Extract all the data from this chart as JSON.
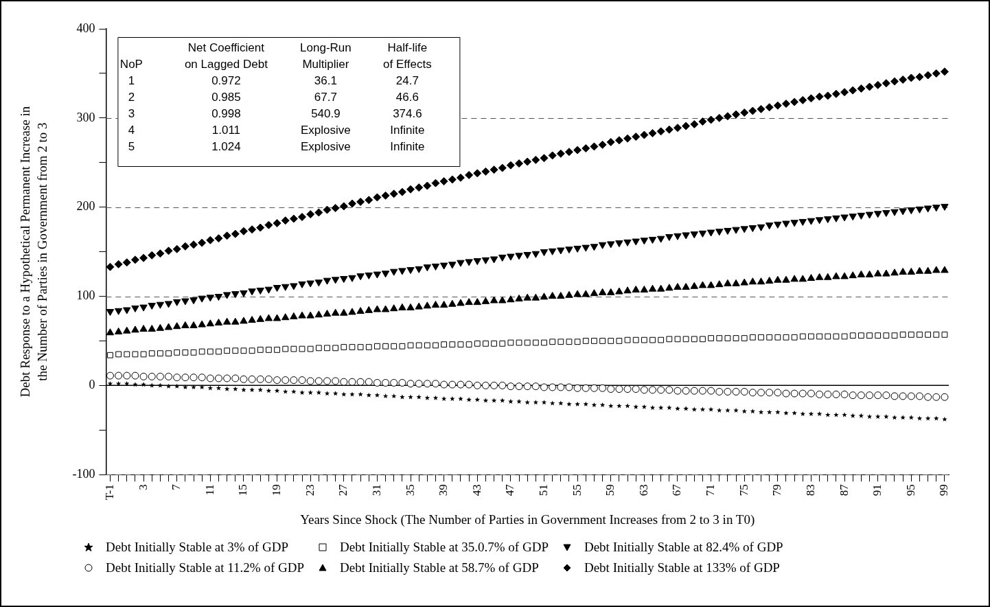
{
  "chart_data": {
    "type": "scatter",
    "xlabel": "Years Since Shock (The Number of Parties in Government Increases from 2 to 3 in T0)",
    "ylabel": "Debt Response to a Hypothetical Permanent Increase in\nthe Number of Parties in Government from 2 to 3",
    "categories": [
      "T-1",
      null,
      null,
      null,
      "3",
      null,
      null,
      null,
      "7",
      null,
      null,
      null,
      "11",
      null,
      null,
      null,
      "15",
      null,
      null,
      null,
      "19",
      null,
      null,
      null,
      "23",
      null,
      null,
      null,
      "27",
      null,
      null,
      null,
      "31",
      null,
      null,
      null,
      "35",
      null,
      null,
      null,
      "39",
      null,
      null,
      null,
      "43",
      null,
      null,
      null,
      "47",
      null,
      null,
      null,
      "51",
      null,
      null,
      null,
      "55",
      null,
      null,
      null,
      "59",
      null,
      null,
      null,
      "63",
      null,
      null,
      null,
      "67",
      null,
      null,
      null,
      "71",
      null,
      null,
      null,
      "75",
      null,
      null,
      null,
      "79",
      null,
      null,
      null,
      "83",
      null,
      null,
      null,
      "87",
      null,
      null,
      null,
      "91",
      null,
      null,
      null,
      "95",
      null,
      null,
      null,
      "99"
    ],
    "ylim": [
      -100,
      400
    ],
    "yticks": [
      -100,
      {
        "value": -50,
        "label": null
      },
      0,
      {
        "value": 50,
        "label": null
      },
      100,
      {
        "value": 150,
        "label": null
      },
      200,
      {
        "value": 250,
        "label": null
      },
      300,
      {
        "value": 350,
        "label": null
      },
      400
    ],
    "grid": "y",
    "legend": "bottom",
    "ref_lines": [
      {
        "axis": "y",
        "value": 0,
        "label": null,
        "color": "#000000",
        "line_style": "solid"
      }
    ],
    "annotations": [
      "Net Coefficient",
      "Long-Run",
      "Half-life",
      "NoP",
      "on Lagged Debt",
      "Multiplier",
      "of Effects",
      "1",
      "0.972",
      "36.1",
      "24.7",
      "2",
      "0.985",
      "67.7",
      "46.6",
      "3",
      "0.998",
      "540.9",
      "374.6",
      "4",
      "1.011",
      "Explosive",
      "Infinite",
      "5",
      "1.024",
      "Explosive",
      "Infinite"
    ],
    "series": [
      {
        "name": "Debt Initially Stable at 3% of GDP",
        "color": "#000000",
        "marker": "star",
        "values": [
          2,
          2,
          2,
          1,
          1,
          0,
          0,
          -1,
          -1,
          -2,
          -2,
          -2,
          -3,
          -3,
          -4,
          -4,
          -5,
          -5,
          -5,
          -6,
          -6,
          -7,
          -7,
          -8,
          -8,
          -8,
          -9,
          -9,
          -10,
          -10,
          -10,
          -11,
          -11,
          -12,
          -12,
          -13,
          -13,
          -13,
          -14,
          -14,
          -15,
          -15,
          -15,
          -16,
          -16,
          -17,
          -17,
          -17,
          -18,
          -18,
          -19,
          -19,
          -19,
          -20,
          -20,
          -21,
          -21,
          -21,
          -22,
          -22,
          -23,
          -23,
          -23,
          -24,
          -24,
          -25,
          -25,
          -25,
          -26,
          -26,
          -27,
          -27,
          -27,
          -28,
          -28,
          -28,
          -29,
          -29,
          -30,
          -30,
          -30,
          -31,
          -31,
          -32,
          -32,
          -32,
          -33,
          -33,
          -33,
          -34,
          -34,
          -35,
          -35,
          -35,
          -36,
          -36,
          -36,
          -37,
          -37,
          -37,
          -38
        ]
      },
      {
        "name": "Debt Initially Stable at 11.2% of GDP",
        "color": "#000000",
        "marker": "circle-open",
        "values": [
          11,
          11,
          11,
          11,
          10,
          10,
          10,
          10,
          9,
          9,
          9,
          9,
          8,
          8,
          8,
          8,
          7,
          7,
          7,
          7,
          6,
          6,
          6,
          6,
          5,
          5,
          5,
          5,
          4,
          4,
          4,
          4,
          3,
          3,
          3,
          3,
          2,
          2,
          2,
          2,
          1,
          1,
          1,
          1,
          0,
          0,
          0,
          0,
          -1,
          -1,
          -1,
          -1,
          -2,
          -2,
          -2,
          -2,
          -3,
          -3,
          -3,
          -3,
          -4,
          -4,
          -4,
          -4,
          -5,
          -5,
          -5,
          -5,
          -6,
          -6,
          -6,
          -6,
          -6,
          -7,
          -7,
          -7,
          -7,
          -8,
          -8,
          -8,
          -8,
          -9,
          -9,
          -9,
          -9,
          -10,
          -10,
          -10,
          -10,
          -11,
          -11,
          -11,
          -11,
          -11,
          -12,
          -12,
          -12,
          -12,
          -13,
          -13,
          -13
        ]
      },
      {
        "name": "Debt Initially Stable at 35.0.7% of GDP",
        "color": "#000000",
        "marker": "square-open",
        "values": [
          34,
          35,
          35,
          35,
          35,
          36,
          36,
          36,
          37,
          37,
          37,
          38,
          38,
          38,
          39,
          39,
          39,
          39,
          40,
          40,
          40,
          41,
          41,
          41,
          41,
          42,
          42,
          42,
          43,
          43,
          43,
          43,
          44,
          44,
          44,
          44,
          45,
          45,
          45,
          45,
          46,
          46,
          46,
          46,
          47,
          47,
          47,
          47,
          48,
          48,
          48,
          48,
          48,
          49,
          49,
          49,
          49,
          50,
          50,
          50,
          50,
          50,
          51,
          51,
          51,
          51,
          51,
          52,
          52,
          52,
          52,
          52,
          53,
          53,
          53,
          53,
          53,
          54,
          54,
          54,
          54,
          54,
          54,
          55,
          55,
          55,
          55,
          55,
          55,
          56,
          56,
          56,
          56,
          56,
          56,
          57,
          57,
          57,
          57,
          57,
          57
        ]
      },
      {
        "name": "Debt Initially Stable at 58.7% of GDP",
        "color": "#000000",
        "marker": "triangle",
        "values": [
          59,
          60,
          61,
          62,
          63,
          63,
          64,
          65,
          66,
          67,
          67,
          68,
          69,
          70,
          71,
          71,
          72,
          73,
          74,
          75,
          75,
          76,
          77,
          78,
          78,
          79,
          80,
          81,
          81,
          82,
          83,
          84,
          85,
          85,
          86,
          87,
          87,
          88,
          89,
          90,
          90,
          91,
          92,
          93,
          93,
          94,
          95,
          95,
          96,
          97,
          98,
          98,
          99,
          100,
          100,
          101,
          102,
          102,
          103,
          104,
          104,
          105,
          106,
          107,
          107,
          108,
          108,
          109,
          110,
          110,
          111,
          112,
          112,
          113,
          114,
          114,
          115,
          116,
          116,
          117,
          118,
          118,
          119,
          119,
          120,
          121,
          121,
          122,
          122,
          123,
          124,
          124,
          125,
          125,
          126,
          127,
          127,
          128,
          128,
          129,
          129
        ]
      },
      {
        "name": "Debt Initially Stable at 82.4% of GDP",
        "color": "#000000",
        "marker": "triangle-down",
        "values": [
          83,
          84,
          85,
          87,
          88,
          90,
          91,
          92,
          94,
          95,
          96,
          98,
          99,
          100,
          102,
          103,
          104,
          106,
          107,
          108,
          110,
          111,
          112,
          114,
          115,
          116,
          118,
          119,
          120,
          121,
          123,
          124,
          125,
          126,
          128,
          129,
          130,
          131,
          133,
          134,
          135,
          136,
          138,
          139,
          140,
          141,
          142,
          144,
          145,
          146,
          147,
          148,
          150,
          151,
          152,
          153,
          154,
          155,
          156,
          158,
          159,
          160,
          161,
          162,
          163,
          164,
          165,
          167,
          168,
          169,
          170,
          171,
          172,
          173,
          174,
          175,
          176,
          177,
          178,
          180,
          181,
          182,
          183,
          184,
          185,
          186,
          187,
          188,
          189,
          190,
          191,
          192,
          193,
          194,
          195,
          196,
          197,
          198,
          199,
          200,
          201
        ]
      },
      {
        "name": "Debt Initially Stable at 133% of GDP",
        "color": "#000000",
        "marker": "diamond",
        "values": [
          133,
          136,
          138,
          141,
          143,
          146,
          148,
          151,
          153,
          156,
          158,
          160,
          163,
          165,
          168,
          170,
          173,
          175,
          177,
          180,
          182,
          185,
          187,
          189,
          192,
          194,
          197,
          199,
          201,
          204,
          206,
          208,
          211,
          213,
          215,
          217,
          220,
          222,
          224,
          227,
          229,
          231,
          233,
          236,
          238,
          240,
          242,
          244,
          247,
          249,
          251,
          253,
          255,
          258,
          260,
          262,
          264,
          266,
          268,
          270,
          273,
          275,
          277,
          279,
          281,
          283,
          285,
          287,
          289,
          291,
          293,
          296,
          298,
          300,
          302,
          304,
          306,
          308,
          310,
          312,
          314,
          316,
          318,
          320,
          322,
          324,
          325,
          327,
          329,
          331,
          333,
          335,
          337,
          339,
          341,
          343,
          345,
          346,
          348,
          350,
          352
        ]
      }
    ]
  }
}
